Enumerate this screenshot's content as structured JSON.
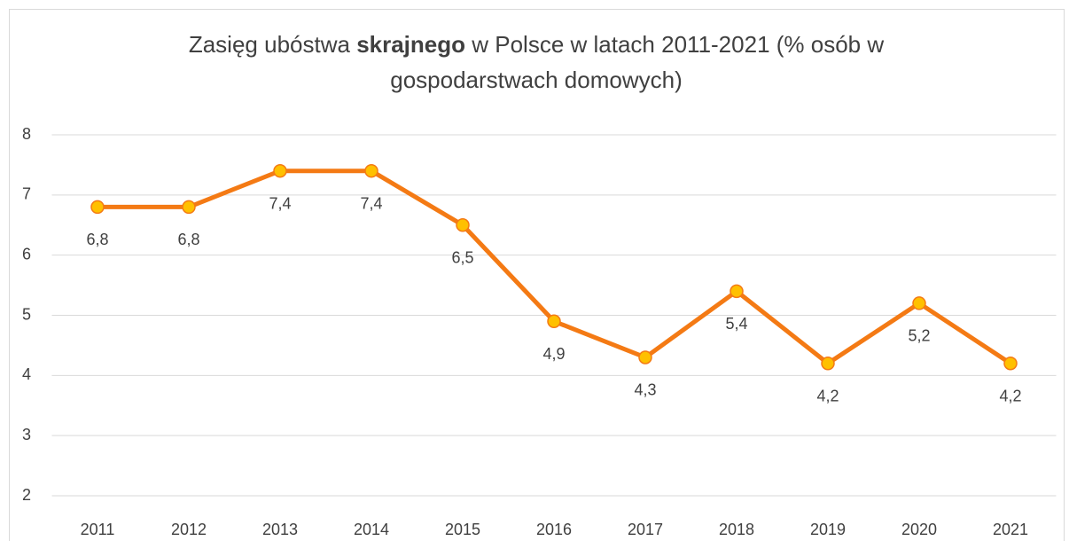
{
  "chart_data": {
    "type": "line",
    "title_parts": [
      "Zasięg ubóstwa",
      "skrajnego",
      "w Polsce w latach 2011-2021 (% osób w gospodarstwach domowych)"
    ],
    "categories": [
      "2011",
      "2012",
      "2013",
      "2014",
      "2015",
      "2016",
      "2017",
      "2018",
      "2019",
      "2020",
      "2021"
    ],
    "values": [
      6.8,
      6.8,
      7.4,
      7.4,
      6.5,
      4.9,
      4.3,
      5.4,
      4.2,
      5.2,
      4.2
    ],
    "value_labels": [
      "6,8",
      "6,8",
      "7,4",
      "7,4",
      "6,5",
      "4,9",
      "4,3",
      "5,4",
      "4,2",
      "5,2",
      "4,2"
    ],
    "color": "#f47a14",
    "marker_color": "#ffc000",
    "ylim": [
      2,
      8
    ],
    "yticks": [
      2,
      3,
      4,
      5,
      6,
      7,
      8
    ],
    "grid": true
  }
}
